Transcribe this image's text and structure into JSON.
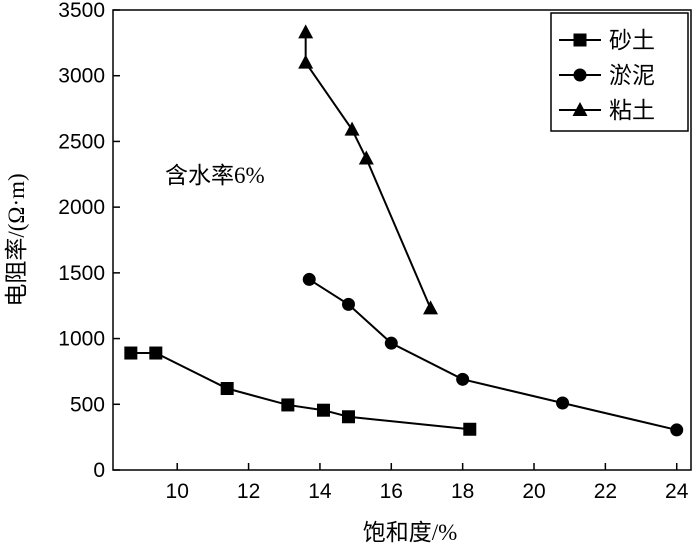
{
  "chart_data": {
    "type": "line",
    "xlabel": "饱和度/%",
    "ylabel": "电阻率/(Ω·m)",
    "annotation": "含水率6%",
    "xlim": [
      8.2,
      24.4
    ],
    "ylim": [
      0,
      3500
    ],
    "xticks": [
      10,
      12,
      14,
      16,
      18,
      20,
      22,
      24
    ],
    "yticks": [
      0,
      500,
      1000,
      1500,
      2000,
      2500,
      3000,
      3500
    ],
    "legend_position": "top-right",
    "grid": false,
    "series": [
      {
        "name": "砂土",
        "marker": "square",
        "x": [
          8.7,
          9.4,
          11.4,
          13.1,
          14.1,
          14.8,
          18.2
        ],
        "y": [
          890,
          890,
          620,
          495,
          455,
          405,
          310
        ]
      },
      {
        "name": "淤泥",
        "marker": "circle",
        "x": [
          13.7,
          14.8,
          16.0,
          18.0,
          20.8,
          24.0
        ],
        "y": [
          1450,
          1260,
          965,
          690,
          510,
          305
        ]
      },
      {
        "name": "粘土",
        "marker": "triangle",
        "x": [
          13.6,
          13.6,
          14.9,
          15.3,
          17.1
        ],
        "y": [
          3330,
          3100,
          2590,
          2370,
          1230
        ]
      }
    ]
  }
}
